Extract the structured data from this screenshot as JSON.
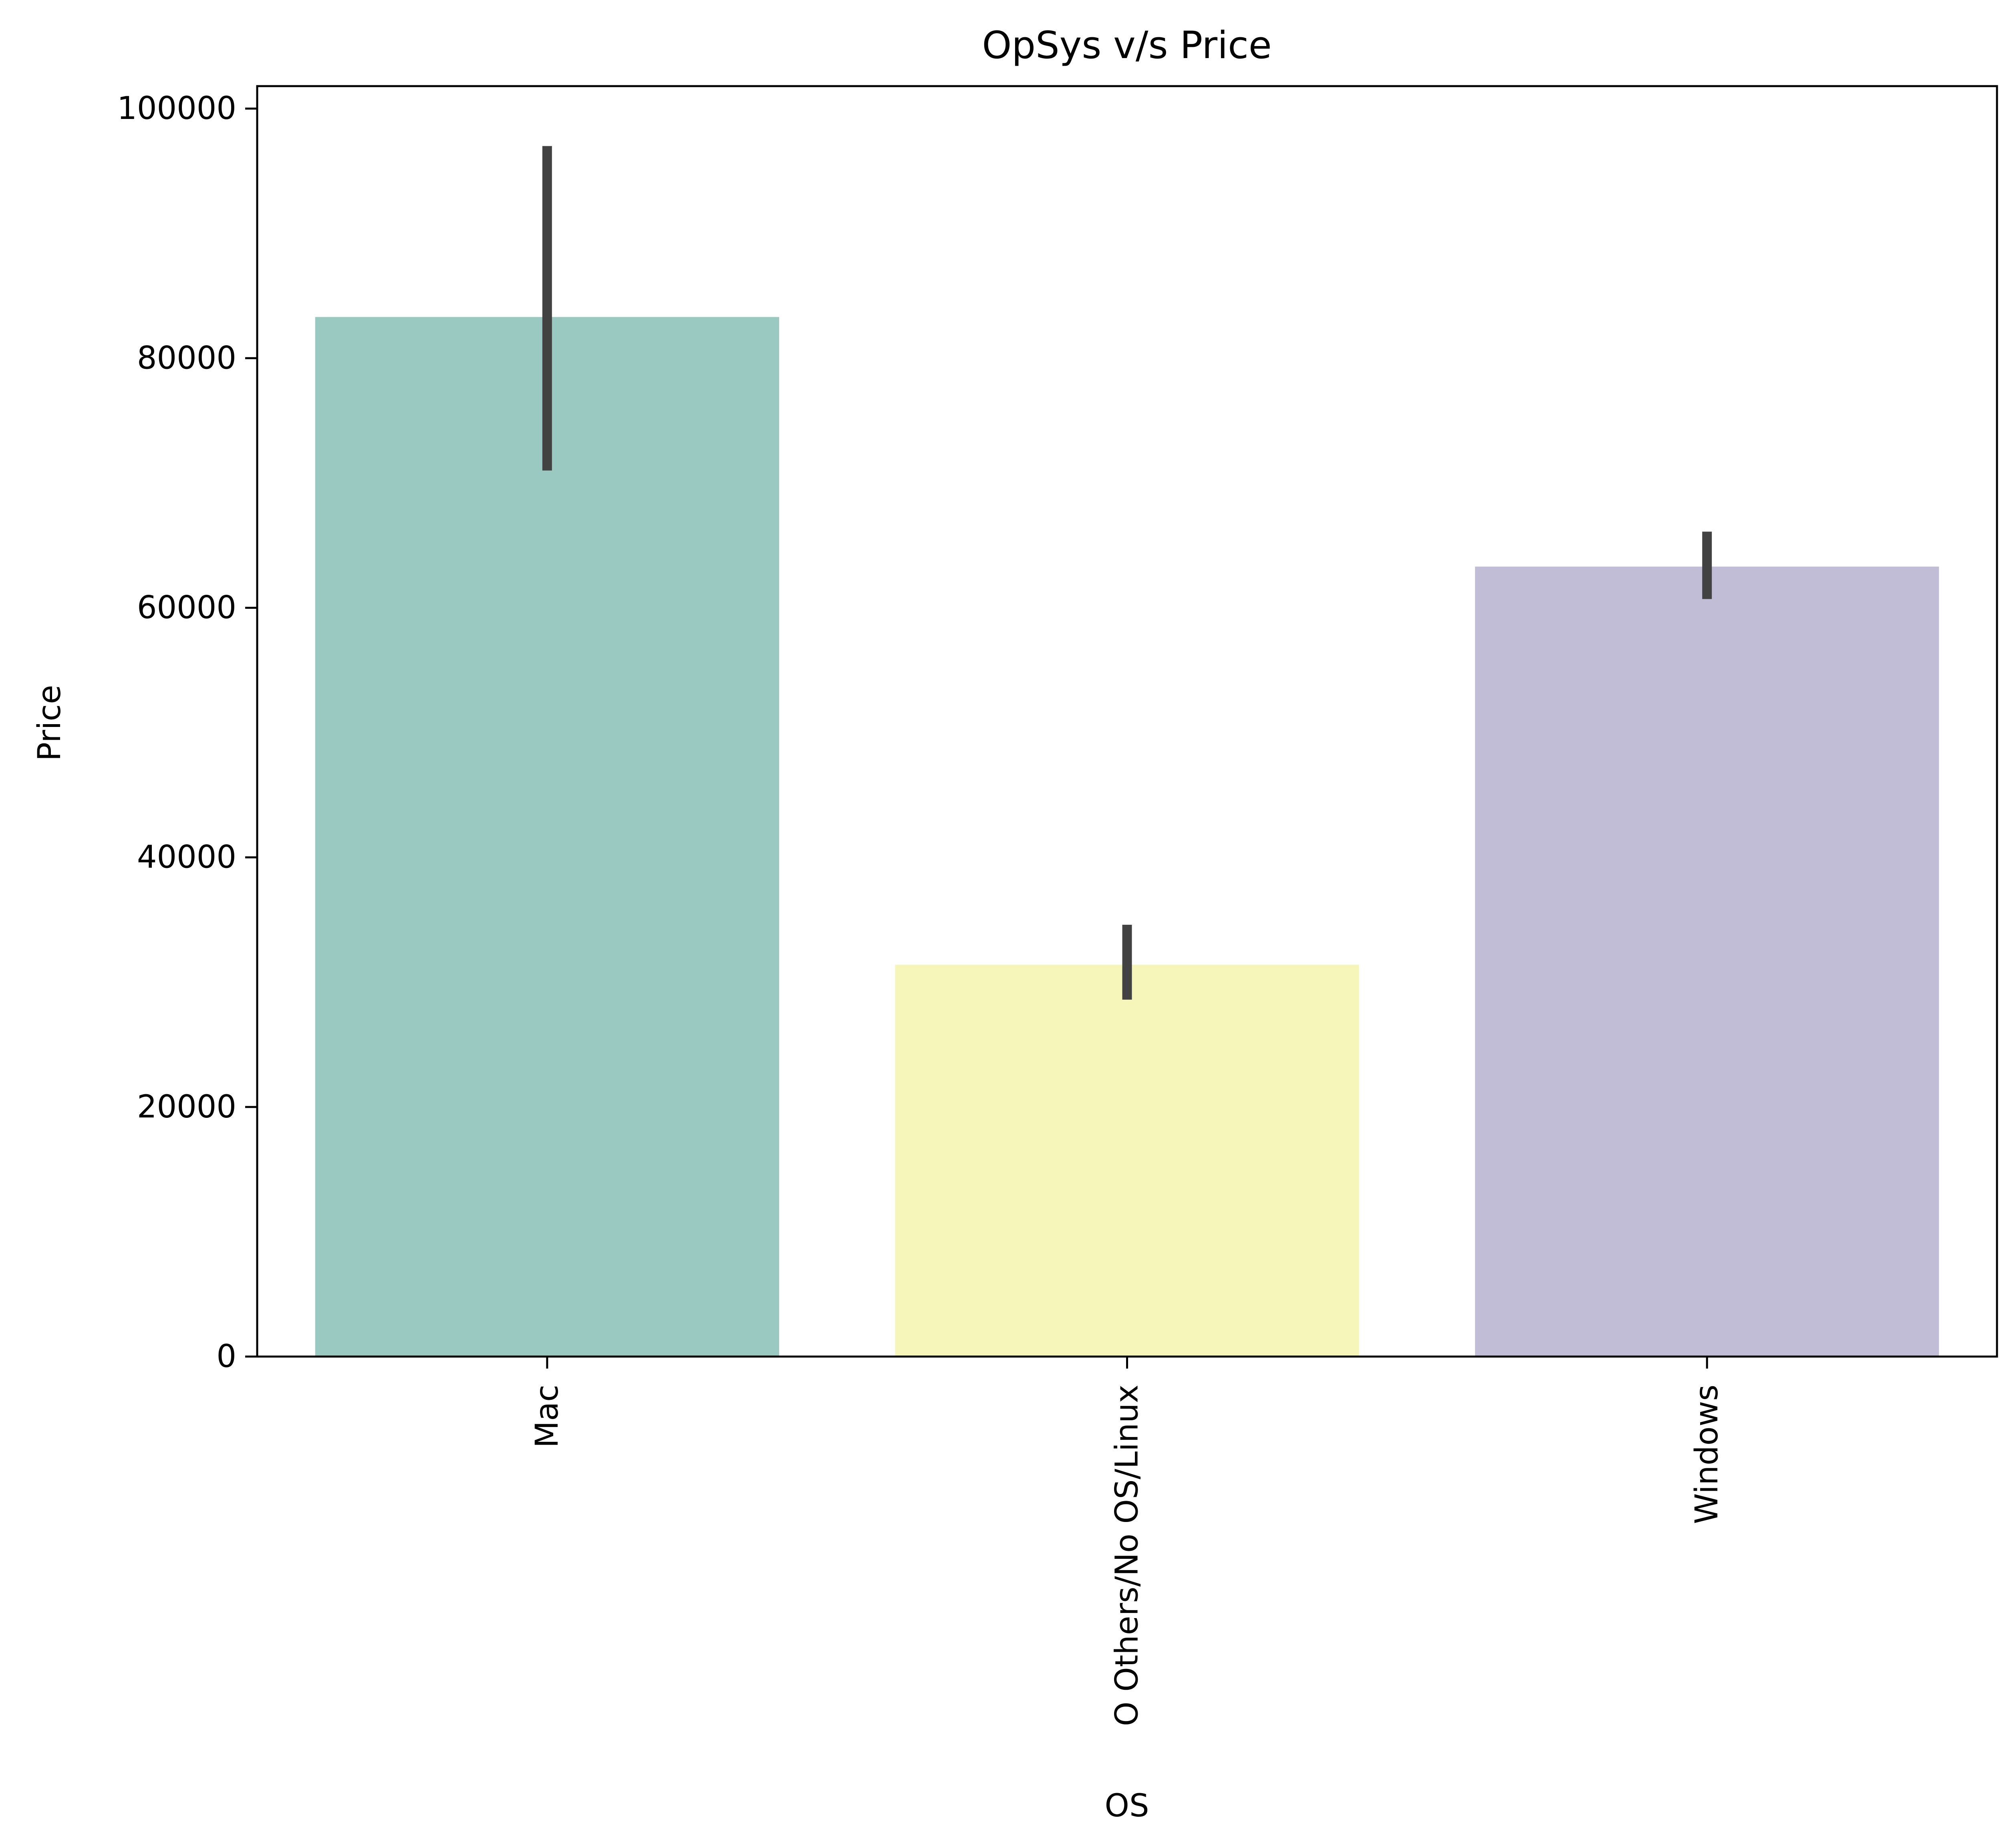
{
  "chart_data": {
    "type": "bar",
    "title": "OpSys v/s Price",
    "xlabel": "OS",
    "ylabel": "Price",
    "categories": [
      "Mac",
      "O Others/No OS/Linux",
      "Windows"
    ],
    "values": [
      83300,
      31400,
      63300
    ],
    "error_bars": [
      {
        "low": 71000,
        "high": 97000
      },
      {
        "low": 28600,
        "high": 34600
      },
      {
        "low": 60700,
        "high": 66100
      }
    ],
    "colors": [
      "#99c9c1",
      "#f6f6bb",
      "#c2bdd6"
    ],
    "error_bar_color": "#424242",
    "ylim": [
      0,
      101800
    ],
    "yticks": [
      0,
      20000,
      40000,
      60000,
      80000,
      100000
    ],
    "ytick_labels": [
      "0",
      "20000",
      "40000",
      "60000",
      "80000",
      "100000"
    ],
    "grid": false
  }
}
